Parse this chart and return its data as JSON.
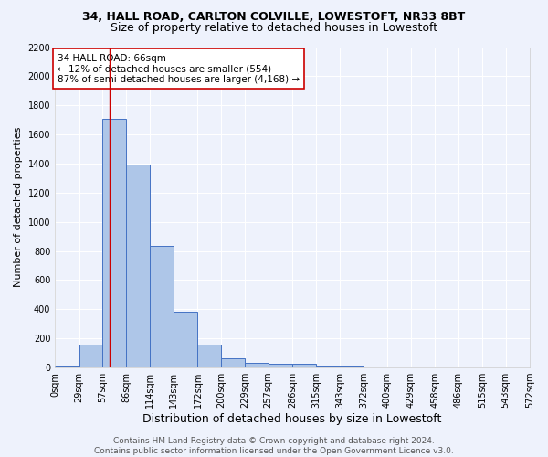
{
  "title1": "34, HALL ROAD, CARLTON COLVILLE, LOWESTOFT, NR33 8BT",
  "title2": "Size of property relative to detached houses in Lowestoft",
  "xlabel": "Distribution of detached houses by size in Lowestoft",
  "ylabel": "Number of detached properties",
  "bar_edges": [
    0,
    29,
    57,
    86,
    114,
    143,
    172,
    200,
    229,
    257,
    286,
    315,
    343,
    372,
    400,
    429,
    458,
    486,
    515,
    543,
    572
  ],
  "bar_heights": [
    15,
    155,
    1710,
    1395,
    835,
    385,
    160,
    65,
    35,
    25,
    25,
    15,
    10,
    0,
    0,
    0,
    0,
    0,
    0,
    0
  ],
  "bar_color": "#aec6e8",
  "bar_edge_color": "#4472c4",
  "property_line_x": 66,
  "property_line_color": "#cc0000",
  "annotation_text": "34 HALL ROAD: 66sqm\n← 12% of detached houses are smaller (554)\n87% of semi-detached houses are larger (4,168) →",
  "annotation_box_color": "#ffffff",
  "annotation_box_edge_color": "#cc0000",
  "ylim": [
    0,
    2200
  ],
  "yticks": [
    0,
    200,
    400,
    600,
    800,
    1000,
    1200,
    1400,
    1600,
    1800,
    2000,
    2200
  ],
  "tick_labels": [
    "0sqm",
    "29sqm",
    "57sqm",
    "86sqm",
    "114sqm",
    "143sqm",
    "172sqm",
    "200sqm",
    "229sqm",
    "257sqm",
    "286sqm",
    "315sqm",
    "343sqm",
    "372sqm",
    "400sqm",
    "429sqm",
    "458sqm",
    "486sqm",
    "515sqm",
    "543sqm",
    "572sqm"
  ],
  "footer_text": "Contains HM Land Registry data © Crown copyright and database right 2024.\nContains public sector information licensed under the Open Government Licence v3.0.",
  "background_color": "#eef2fc",
  "grid_color": "#ffffff",
  "title1_fontsize": 9,
  "title2_fontsize": 9,
  "xlabel_fontsize": 9,
  "ylabel_fontsize": 8,
  "tick_fontsize": 7,
  "footer_fontsize": 6.5
}
